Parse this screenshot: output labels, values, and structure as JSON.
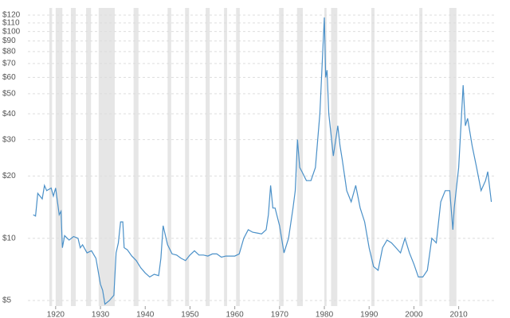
{
  "chart_data": {
    "type": "line",
    "log_y": true,
    "grid": true,
    "xlim": [
      1913.8,
      2017.9
    ],
    "ylim": [
      4.7,
      130
    ],
    "xticks": [
      1920,
      1930,
      1940,
      1950,
      1960,
      1970,
      1980,
      1990,
      2000,
      2010
    ],
    "yticks": [
      {
        "value": 5,
        "label": "$5"
      },
      {
        "value": 10,
        "label": "$10"
      },
      {
        "value": 20,
        "label": "$20"
      },
      {
        "value": 30,
        "label": "$30"
      },
      {
        "value": 40,
        "label": "$40"
      },
      {
        "value": 50,
        "label": "$50"
      },
      {
        "value": 60,
        "label": "$60"
      },
      {
        "value": 70,
        "label": "$70"
      },
      {
        "value": 80,
        "label": "$80"
      },
      {
        "value": 90,
        "label": "$90"
      },
      {
        "value": 100,
        "label": "$100"
      },
      {
        "value": 110,
        "label": "$110"
      },
      {
        "value": 120,
        "label": "$120"
      }
    ],
    "recession_color": "#e6e6e6",
    "recessions": [
      [
        1918.6,
        1919.2
      ],
      [
        1920,
        1921.5
      ],
      [
        1923.4,
        1924.5
      ],
      [
        1926.8,
        1927.9
      ],
      [
        1929.6,
        1933.2
      ],
      [
        1937.4,
        1938.5
      ],
      [
        1945,
        1945.8
      ],
      [
        1948.9,
        1949.8
      ],
      [
        1953.5,
        1954.4
      ],
      [
        1957.6,
        1958.3
      ],
      [
        1960.3,
        1961.1
      ],
      [
        1969.9,
        1970.9
      ],
      [
        1973.9,
        1975.2
      ],
      [
        1980,
        1980.5
      ],
      [
        1981.5,
        1982.9
      ],
      [
        1990.5,
        1991.2
      ],
      [
        2001.2,
        2001.9
      ],
      [
        2007.9,
        2009.5
      ]
    ],
    "series": [
      {
        "color": "#4a90c8",
        "x": [
          1915,
          1915.5,
          1916,
          1917,
          1917.5,
          1918,
          1919,
          1919.5,
          1920,
          1920.8,
          1921.2,
          1921.5,
          1922,
          1923,
          1924,
          1925,
          1925.5,
          1926,
          1927,
          1928,
          1929,
          1930,
          1930.5,
          1931,
          1932,
          1933,
          1933.5,
          1934,
          1934.5,
          1935,
          1935.3,
          1936,
          1937,
          1938,
          1939,
          1940,
          1941,
          1942,
          1943,
          1943.5,
          1944,
          1945,
          1946,
          1947,
          1948,
          1949,
          1950,
          1951,
          1952,
          1953,
          1954,
          1955,
          1956,
          1957,
          1958,
          1959,
          1960,
          1961,
          1962,
          1963,
          1964,
          1965,
          1966,
          1967,
          1967.5,
          1968,
          1968.5,
          1969,
          1970,
          1971,
          1972,
          1973,
          1973.5,
          1974,
          1974.5,
          1975,
          1976,
          1977,
          1978,
          1979,
          1980,
          1980.3,
          1980.6,
          1981,
          1982,
          1983,
          1983.5,
          1984,
          1985,
          1986,
          1987,
          1988,
          1989,
          1990,
          1991,
          1992,
          1993,
          1994,
          1995,
          1996,
          1997,
          1998,
          1999,
          2000,
          2001,
          2002,
          2003,
          2004,
          2005,
          2006,
          2007,
          2008,
          2008.7,
          2009,
          2010,
          2011,
          2011.5,
          2012,
          2013,
          2014,
          2015,
          2016,
          2016.5,
          2017,
          2017.3
        ],
        "values": [
          13,
          12.8,
          16.5,
          15.5,
          18,
          17,
          17.5,
          16,
          17.5,
          13,
          13.5,
          9,
          10.3,
          9.8,
          10.2,
          10,
          9,
          9.3,
          8.5,
          8.7,
          8,
          6,
          5.6,
          4.8,
          5,
          5.3,
          8.5,
          9.5,
          12,
          12,
          9,
          8.8,
          8.2,
          7.8,
          7.2,
          6.8,
          6.5,
          6.7,
          6.6,
          8,
          11.5,
          9.3,
          8.4,
          8.3,
          8,
          7.8,
          8.3,
          8.7,
          8.3,
          8.3,
          8.2,
          8.4,
          8.4,
          8.1,
          8.2,
          8.2,
          8.2,
          8.4,
          10,
          11,
          10.7,
          10.6,
          10.5,
          11,
          13,
          18,
          14,
          14,
          11.5,
          8.5,
          10,
          14,
          17,
          30,
          22,
          21,
          19,
          19,
          22,
          40,
          117,
          60,
          65,
          40,
          25,
          35,
          28,
          24,
          17,
          15,
          18,
          14,
          12,
          9,
          7.3,
          7,
          9,
          9.8,
          9.5,
          9,
          8.5,
          10,
          8.5,
          7.5,
          6.5,
          6.5,
          7,
          10,
          9.5,
          15,
          17,
          17,
          11,
          14,
          22,
          55,
          35,
          38,
          28,
          22,
          17,
          19,
          21,
          17,
          15
        ]
      }
    ]
  }
}
